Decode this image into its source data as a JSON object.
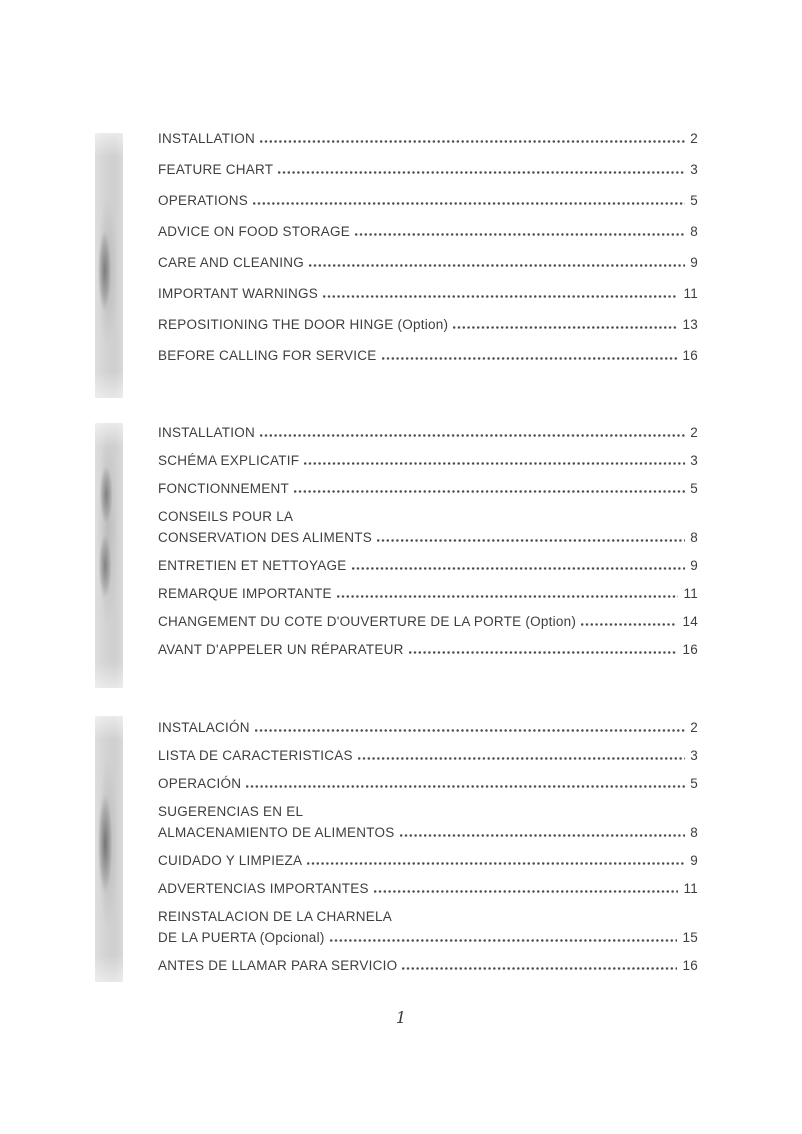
{
  "colors": {
    "page_bg": "#ffffff",
    "text": "#3e3e40",
    "dots": "#4a4a4c",
    "bar_base": "#d3d3d3"
  },
  "footer": {
    "page_number": "1"
  },
  "sections": [
    {
      "language": "english",
      "entries": [
        {
          "lines": [
            "INSTALLATION"
          ],
          "page": "2"
        },
        {
          "lines": [
            "FEATURE CHART"
          ],
          "page": "3"
        },
        {
          "lines": [
            "OPERATIONS"
          ],
          "page": "5"
        },
        {
          "lines": [
            "ADVICE ON FOOD STORAGE"
          ],
          "page": "8"
        },
        {
          "lines": [
            "CARE AND CLEANING"
          ],
          "page": "9"
        },
        {
          "lines": [
            "IMPORTANT WARNINGS"
          ],
          "page": "11"
        },
        {
          "lines": [
            "REPOSITIONING THE DOOR HINGE (Option)"
          ],
          "page": "13"
        },
        {
          "lines": [
            "BEFORE CALLING FOR SERVICE"
          ],
          "page": "16"
        }
      ]
    },
    {
      "language": "french",
      "entries": [
        {
          "lines": [
            "INSTALLATION"
          ],
          "page": "2"
        },
        {
          "lines": [
            "SCHÉMA EXPLICATIF"
          ],
          "page": "3"
        },
        {
          "lines": [
            "FONCTIONNEMENT"
          ],
          "page": "5"
        },
        {
          "lines": [
            "CONSEILS POUR LA",
            "CONSERVATION DES ALIMENTS"
          ],
          "page": "8"
        },
        {
          "lines": [
            "ENTRETIEN ET NETTOYAGE"
          ],
          "page": "9"
        },
        {
          "lines": [
            "REMARQUE IMPORTANTE"
          ],
          "page": "11"
        },
        {
          "lines": [
            "CHANGEMENT DU COTE D'OUVERTURE DE LA PORTE (Option)"
          ],
          "page": "14"
        },
        {
          "lines": [
            "AVANT D'APPELER UN RÉPARATEUR"
          ],
          "page": "16"
        }
      ]
    },
    {
      "language": "spanish",
      "entries": [
        {
          "lines": [
            "INSTALACIÓN"
          ],
          "page": "2"
        },
        {
          "lines": [
            "LISTA DE CARACTERISTICAS"
          ],
          "page": "3"
        },
        {
          "lines": [
            "OPERACIÓN"
          ],
          "page": "5"
        },
        {
          "lines": [
            "SUGERENCIAS EN EL",
            "ALMACENAMIENTO DE ALIMENTOS"
          ],
          "page": "8"
        },
        {
          "lines": [
            "CUIDADO Y LIMPIEZA"
          ],
          "page": "9"
        },
        {
          "lines": [
            "ADVERTENCIAS IMPORTANTES"
          ],
          "page": "11"
        },
        {
          "lines": [
            "REINSTALACION DE LA CHARNELA",
            "DE LA PUERTA (Opcional)"
          ],
          "page": "15"
        },
        {
          "lines": [
            "ANTES DE LLAMAR PARA SERVICIO"
          ],
          "page": "16"
        }
      ]
    }
  ]
}
